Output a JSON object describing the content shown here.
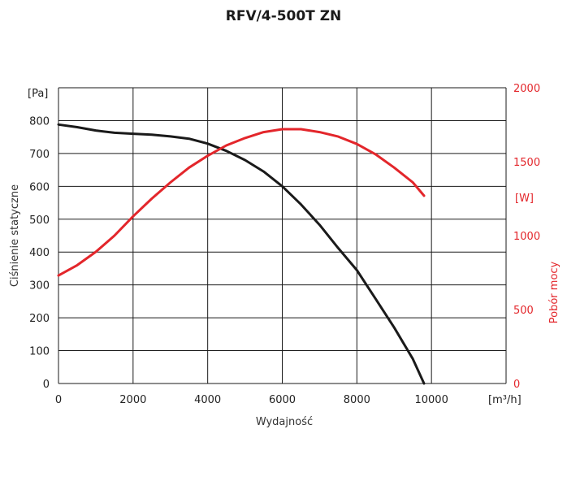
{
  "chart_data": {
    "type": "line",
    "title": "RFV/4-500T ZN",
    "xlabel": "Wydajność",
    "x_unit": "[m³/h]",
    "ylabel": "Ciśnienie statyczne",
    "y_unit": "[Pa]",
    "y2label": "Pobór mocy",
    "y2_unit": "[W]",
    "xlim": [
      0,
      12000
    ],
    "ylim": [
      0,
      900
    ],
    "y2lim": [
      0,
      2000
    ],
    "x_ticks": [
      0,
      2000,
      4000,
      6000,
      8000,
      10000
    ],
    "y_ticks": [
      0,
      100,
      200,
      300,
      400,
      500,
      600,
      700,
      800
    ],
    "y2_ticks": [
      0,
      500,
      1000,
      1500,
      2000
    ],
    "grid": true,
    "colors": {
      "pressure": "#1a1a1a",
      "power": "#e3262b"
    },
    "series": [
      {
        "axis": "left",
        "x": [
          0,
          500,
          1000,
          1500,
          2000,
          2500,
          3000,
          3500,
          4000,
          4500,
          5000,
          5500,
          6000,
          6500,
          7000,
          7500,
          8000,
          8500,
          9000,
          9500,
          9800
        ],
        "values": [
          788,
          780,
          770,
          763,
          760,
          757,
          752,
          745,
          730,
          708,
          680,
          645,
          600,
          545,
          483,
          412,
          345,
          258,
          170,
          75,
          0
        ]
      },
      {
        "axis": "right",
        "x": [
          0,
          500,
          1000,
          1500,
          2000,
          2500,
          3000,
          3500,
          4000,
          4500,
          5000,
          5500,
          6000,
          6500,
          7000,
          7500,
          8000,
          8500,
          9000,
          9500,
          9800
        ],
        "values": [
          730,
          800,
          890,
          1000,
          1130,
          1250,
          1360,
          1460,
          1540,
          1610,
          1660,
          1700,
          1720,
          1720,
          1700,
          1670,
          1620,
          1550,
          1460,
          1360,
          1270
        ]
      }
    ]
  }
}
